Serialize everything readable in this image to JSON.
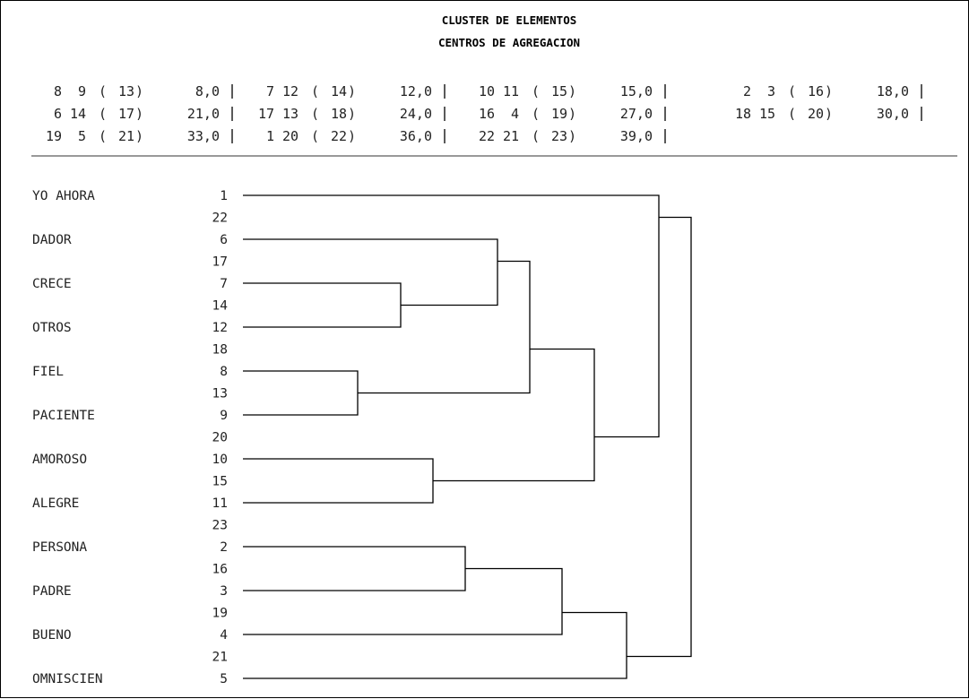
{
  "titles": [
    "CLUSTER DE ELEMENTOS",
    "CENTROS DE AGREGACION"
  ],
  "agg_rows": [
    [
      {
        "a": "8",
        "b": "9",
        "node": "13",
        "level": "8,0"
      },
      {
        "a": "7",
        "b": "12",
        "node": "14",
        "level": "12,0"
      },
      {
        "a": "10",
        "b": "11",
        "node": "15",
        "level": "15,0"
      },
      {
        "a": "2",
        "b": "3",
        "node": "16",
        "level": "18,0"
      }
    ],
    [
      {
        "a": "6",
        "b": "14",
        "node": "17",
        "level": "21,0"
      },
      {
        "a": "17",
        "b": "13",
        "node": "18",
        "level": "24,0"
      },
      {
        "a": "16",
        "b": "4",
        "node": "19",
        "level": "27,0"
      },
      {
        "a": "18",
        "b": "15",
        "node": "20",
        "level": "30,0"
      }
    ],
    [
      {
        "a": "19",
        "b": "5",
        "node": "21",
        "level": "33,0"
      },
      {
        "a": "1",
        "b": "20",
        "node": "22",
        "level": "36,0"
      },
      {
        "a": "22",
        "b": "21",
        "node": "23",
        "level": "39,0"
      }
    ]
  ],
  "leaves": [
    {
      "name": "YO AHORA",
      "id": "1"
    },
    {
      "name": "DADOR",
      "id": "6"
    },
    {
      "name": "CRECE",
      "id": "7"
    },
    {
      "name": "OTROS",
      "id": "12"
    },
    {
      "name": "FIEL",
      "id": "8"
    },
    {
      "name": "PACIENTE",
      "id": "9"
    },
    {
      "name": "AMOROSO",
      "id": "10"
    },
    {
      "name": "ALEGRE",
      "id": "11"
    },
    {
      "name": "PERSONA",
      "id": "2"
    },
    {
      "name": "PADRE",
      "id": "3"
    },
    {
      "name": "BUENO",
      "id": "4"
    },
    {
      "name": "OMNISCIEN",
      "id": "5"
    }
  ],
  "merges": [
    {
      "a": "1",
      "b": "20",
      "node": "22"
    },
    {
      "a": "6",
      "b": "14",
      "node": "17"
    },
    {
      "a": "7",
      "b": "12",
      "node": "14"
    },
    {
      "a": "17",
      "b": "13",
      "node": "18"
    },
    {
      "a": "8",
      "b": "9",
      "node": "13"
    },
    {
      "a": "18",
      "b": "15",
      "node": "20"
    },
    {
      "a": "10",
      "b": "11",
      "node": "15"
    },
    {
      "a": "22",
      "b": "21",
      "node": "23"
    },
    {
      "a": "2",
      "b": "3",
      "node": "16"
    },
    {
      "a": "16",
      "b": "4",
      "node": "19"
    },
    {
      "a": "19",
      "b": "5",
      "node": "21"
    }
  ],
  "node_levels": {
    "13": 8,
    "14": 12,
    "15": 15,
    "16": 18,
    "17": 21,
    "18": 24,
    "19": 27,
    "20": 30,
    "21": 33,
    "22": 36,
    "23": 39
  },
  "row_ids": [
    "1",
    "22",
    "6",
    "17",
    "7",
    "14",
    "12",
    "18",
    "8",
    "13",
    "9",
    "20",
    "10",
    "15",
    "11",
    "23",
    "2",
    "16",
    "3",
    "19",
    "4",
    "21",
    "5"
  ]
}
